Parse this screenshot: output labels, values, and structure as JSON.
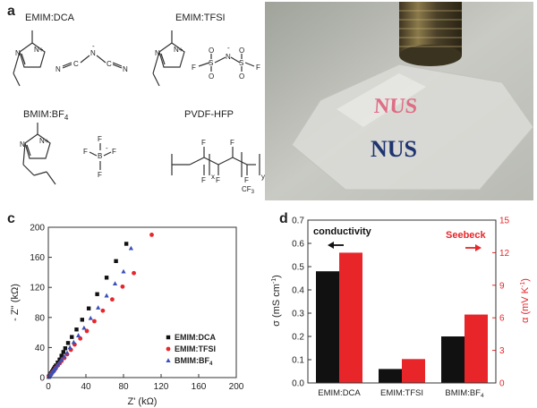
{
  "panels": {
    "a": {
      "letter": "a",
      "molecules": [
        {
          "name": "EMIM:DCA"
        },
        {
          "name": "EMIM:TFSI"
        },
        {
          "name": "BMIM:BF",
          "sub": "4"
        },
        {
          "name": "PVDF-HFP"
        }
      ],
      "atoms": {
        "N": "N",
        "Nplus": "N+",
        "F": "F",
        "C": "C",
        "S": "S",
        "O": "O",
        "B": "B",
        "minus": "-",
        "CF3": "CF",
        "three": "3",
        "y": "y",
        "x": "x"
      }
    },
    "b": {
      "letter": "b",
      "text_red": "NUS",
      "text_blue": "NUS"
    },
    "c": {
      "letter": "c"
    },
    "d": {
      "letter": "d"
    }
  },
  "colors": {
    "black_series": "#111111",
    "red_series": "#e8262a",
    "blue_series": "#3b4fb8",
    "seebeck_red": "#e8262a"
  },
  "chart_data": [
    {
      "type": "scatter",
      "panel": "c",
      "xlabel": "Z' (kΩ)",
      "ylabel": "- Z'' (kΩ)",
      "xlim": [
        0,
        200
      ],
      "ylim": [
        0,
        200
      ],
      "xticks": [
        "0",
        "40",
        "80",
        "120",
        "160",
        "200"
      ],
      "yticks": [
        "0",
        "40",
        "80",
        "120",
        "160",
        "200"
      ],
      "legend": "bottom-right",
      "series": [
        {
          "name": "EMIM:DCA",
          "sub": "",
          "marker": "square",
          "color": "#111111",
          "x": [
            0.5,
            1,
            1.5,
            2,
            2.5,
            3,
            4,
            5,
            6,
            7,
            8,
            10,
            12,
            14,
            16,
            18,
            21,
            25,
            30,
            36,
            43,
            52,
            62,
            72,
            83
          ],
          "y": [
            1,
            2,
            3,
            4,
            5,
            6,
            8,
            10,
            12,
            14,
            16,
            20,
            24,
            29,
            34,
            39,
            46,
            54,
            64,
            77,
            92,
            111,
            133,
            155,
            178
          ]
        },
        {
          "name": "EMIM:TFSI",
          "sub": "",
          "marker": "circle",
          "color": "#e8262a",
          "x": [
            0.5,
            1,
            1.5,
            2,
            3,
            4,
            5,
            6,
            7,
            8,
            10,
            12,
            14,
            17,
            20,
            24,
            28,
            34,
            41,
            49,
            58,
            68,
            79,
            91,
            110
          ],
          "y": [
            0.8,
            1.6,
            2.5,
            3.5,
            5,
            6.5,
            8,
            9.5,
            11,
            13,
            16,
            19,
            22,
            26,
            31,
            37,
            44,
            52,
            62,
            75,
            89,
            104,
            121,
            139,
            190
          ]
        },
        {
          "name": "BMIM:BF",
          "sub": "4",
          "marker": "triangle",
          "color": "#3b4fb8",
          "x": [
            0.5,
            1,
            1.5,
            2,
            3,
            4,
            5,
            6,
            7,
            8,
            10,
            12,
            14,
            17,
            20,
            23,
            27,
            32,
            38,
            45,
            53,
            62,
            71,
            80,
            88
          ],
          "y": [
            0.8,
            1.7,
            2.6,
            3.6,
            5.2,
            6.8,
            8.4,
            10,
            12,
            13.5,
            17,
            20,
            24,
            28,
            33,
            40,
            47,
            56,
            66,
            79,
            93,
            109,
            125,
            141,
            172
          ]
        }
      ]
    },
    {
      "type": "bar",
      "panel": "d",
      "categories": [
        {
          "name": "EMIM:DCA",
          "sub": ""
        },
        {
          "name": "EMIM:TFSI",
          "sub": ""
        },
        {
          "name": "BMIM:BF",
          "sub": "4"
        }
      ],
      "series": [
        {
          "name": "conductivity",
          "axis": "left",
          "color": "#111111",
          "values": [
            0.48,
            0.06,
            0.2
          ]
        },
        {
          "name": "Seebeck",
          "axis": "right",
          "color": "#e8262a",
          "values": [
            12.0,
            2.2,
            6.3
          ]
        }
      ],
      "ylabel_left": "σ (mS cm",
      "ylabel_left_sup": "-1",
      "ylabel_left_end": ")",
      "ylabel_right": "α (mV K",
      "ylabel_right_sup": "-1",
      "ylabel_right_end": ")",
      "ylim_left": [
        0,
        0.7
      ],
      "ylim_right": [
        0,
        15
      ],
      "yticks_left": [
        "0.0",
        "0.1",
        "0.2",
        "0.3",
        "0.4",
        "0.5",
        "0.6",
        "0.7"
      ],
      "yticks_right": [
        "0",
        "3",
        "6",
        "9",
        "12",
        "15"
      ],
      "annotations": {
        "left": "conductivity",
        "right": "Seebeck"
      }
    }
  ]
}
